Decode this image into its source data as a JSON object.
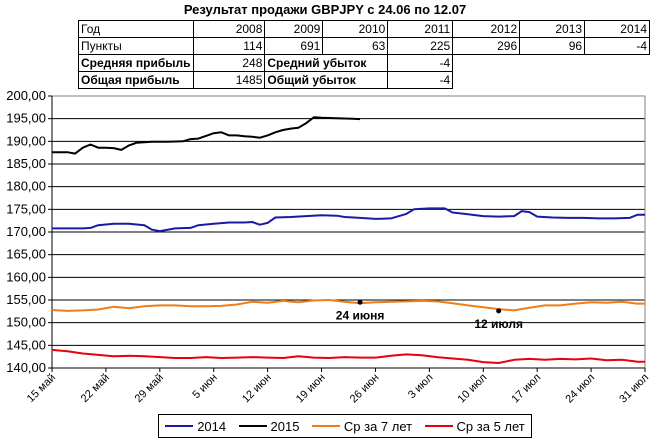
{
  "title": "Результат продажи GBPJPY с 24.06 по 12.07",
  "table": {
    "year_label": "Год",
    "years": [
      "2008",
      "2009",
      "2010",
      "2011",
      "2012",
      "2013",
      "2014"
    ],
    "points_label": "Пункты",
    "points": [
      "114",
      "691",
      "63",
      "225",
      "296",
      "96",
      "-4"
    ],
    "avg_profit_label": "Средняя прибыль",
    "avg_profit": "248",
    "avg_loss_label": "Средний убыток",
    "avg_loss": "-4",
    "total_profit_label": "Общая прибыль",
    "total_profit": "1485",
    "total_loss_label": "Общий убыток",
    "total_loss": "-4"
  },
  "chart_data": {
    "type": "line",
    "ylim": [
      140,
      200
    ],
    "yticks": [
      "140,00",
      "145,00",
      "150,00",
      "155,00",
      "160,00",
      "165,00",
      "170,00",
      "175,00",
      "180,00",
      "185,00",
      "190,00",
      "195,00",
      "200,00"
    ],
    "xlim": [
      0,
      77
    ],
    "xticks": [
      {
        "label": "15 май",
        "x": 0
      },
      {
        "label": "22 май",
        "x": 7
      },
      {
        "label": "29 май",
        "x": 14
      },
      {
        "label": "5 июн",
        "x": 21
      },
      {
        "label": "12 июн",
        "x": 28
      },
      {
        "label": "19 июн",
        "x": 35
      },
      {
        "label": "26 июн",
        "x": 42
      },
      {
        "label": "3 июл",
        "x": 49
      },
      {
        "label": "10 июл",
        "x": 56
      },
      {
        "label": "17 июл",
        "x": 63
      },
      {
        "label": "24 июл",
        "x": 70
      },
      {
        "label": "31 июл",
        "x": 77
      }
    ],
    "grid": "horizontal",
    "legend_position": "bottom",
    "series": [
      {
        "name": "2014",
        "color": "#1a1aa6",
        "points": [
          [
            0,
            170.8
          ],
          [
            2,
            170.8
          ],
          [
            4,
            170.8
          ],
          [
            5,
            170.9
          ],
          [
            6,
            171.5
          ],
          [
            8,
            171.8
          ],
          [
            10,
            171.8
          ],
          [
            12,
            171.5
          ],
          [
            13,
            170.5
          ],
          [
            14,
            170.2
          ],
          [
            16,
            170.8
          ],
          [
            18,
            170.9
          ],
          [
            19,
            171.5
          ],
          [
            21,
            171.8
          ],
          [
            23,
            172.1
          ],
          [
            25,
            172.1
          ],
          [
            26,
            172.2
          ],
          [
            27,
            171.6
          ],
          [
            28,
            172.0
          ],
          [
            29,
            173.2
          ],
          [
            31,
            173.3
          ],
          [
            33,
            173.5
          ],
          [
            35,
            173.7
          ],
          [
            37,
            173.6
          ],
          [
            38,
            173.3
          ],
          [
            40,
            173.1
          ],
          [
            42,
            172.9
          ],
          [
            44,
            173.0
          ],
          [
            46,
            174.0
          ],
          [
            47,
            175.0
          ],
          [
            49,
            175.2
          ],
          [
            51,
            175.2
          ],
          [
            52,
            174.3
          ],
          [
            54,
            173.9
          ],
          [
            56,
            173.5
          ],
          [
            58,
            173.4
          ],
          [
            60,
            173.5
          ],
          [
            61,
            174.6
          ],
          [
            62,
            174.4
          ],
          [
            63,
            173.4
          ],
          [
            65,
            173.2
          ],
          [
            67,
            173.1
          ],
          [
            69,
            173.1
          ],
          [
            71,
            173.0
          ],
          [
            73,
            173.0
          ],
          [
            75,
            173.1
          ],
          [
            76,
            173.8
          ],
          [
            77,
            173.8
          ]
        ]
      },
      {
        "name": "2015",
        "color": "#000000",
        "points": [
          [
            0,
            187.6
          ],
          [
            2,
            187.6
          ],
          [
            3,
            187.3
          ],
          [
            4,
            188.6
          ],
          [
            5,
            189.3
          ],
          [
            6,
            188.6
          ],
          [
            7,
            188.6
          ],
          [
            8,
            188.5
          ],
          [
            9,
            188.1
          ],
          [
            10,
            189.1
          ],
          [
            11,
            189.7
          ],
          [
            13,
            189.9
          ],
          [
            15,
            189.9
          ],
          [
            17,
            190.0
          ],
          [
            18,
            190.5
          ],
          [
            19,
            190.6
          ],
          [
            20,
            191.2
          ],
          [
            21,
            191.8
          ],
          [
            22,
            192.0
          ],
          [
            23,
            191.3
          ],
          [
            24,
            191.3
          ],
          [
            25,
            191.1
          ],
          [
            26,
            191.0
          ],
          [
            27,
            190.8
          ],
          [
            28,
            191.3
          ],
          [
            29,
            192.0
          ],
          [
            30,
            192.5
          ],
          [
            31,
            192.8
          ],
          [
            32,
            193.0
          ],
          [
            33,
            194.0
          ],
          [
            34,
            195.3
          ],
          [
            35,
            195.2
          ],
          [
            37,
            195.1
          ],
          [
            39,
            195.0
          ],
          [
            40,
            194.9
          ]
        ]
      },
      {
        "name": "Ср за 7 лет",
        "color": "#f07d19",
        "points": [
          [
            0,
            152.8
          ],
          [
            2,
            152.6
          ],
          [
            4,
            152.7
          ],
          [
            6,
            152.9
          ],
          [
            8,
            153.5
          ],
          [
            10,
            153.2
          ],
          [
            12,
            153.6
          ],
          [
            14,
            153.8
          ],
          [
            16,
            153.8
          ],
          [
            18,
            153.6
          ],
          [
            20,
            153.6
          ],
          [
            22,
            153.7
          ],
          [
            24,
            154.0
          ],
          [
            26,
            154.6
          ],
          [
            28,
            154.4
          ],
          [
            30,
            154.8
          ],
          [
            32,
            154.5
          ],
          [
            34,
            154.9
          ],
          [
            36,
            155.0
          ],
          [
            38,
            154.6
          ],
          [
            40,
            154.3
          ],
          [
            42,
            154.5
          ],
          [
            44,
            154.6
          ],
          [
            46,
            154.7
          ],
          [
            48,
            154.8
          ],
          [
            50,
            154.7
          ],
          [
            52,
            154.3
          ],
          [
            54,
            153.8
          ],
          [
            56,
            153.4
          ],
          [
            58,
            153.0
          ],
          [
            60,
            152.7
          ],
          [
            62,
            153.3
          ],
          [
            64,
            153.8
          ],
          [
            66,
            153.8
          ],
          [
            68,
            154.2
          ],
          [
            70,
            154.5
          ],
          [
            72,
            154.4
          ],
          [
            74,
            154.6
          ],
          [
            76,
            154.2
          ],
          [
            77,
            154.2
          ]
        ]
      },
      {
        "name": "Ср за 5 лет",
        "color": "#e8000c",
        "points": [
          [
            0,
            144.0
          ],
          [
            2,
            143.7
          ],
          [
            4,
            143.2
          ],
          [
            6,
            142.9
          ],
          [
            8,
            142.6
          ],
          [
            10,
            142.7
          ],
          [
            12,
            142.6
          ],
          [
            14,
            142.4
          ],
          [
            16,
            142.2
          ],
          [
            18,
            142.2
          ],
          [
            20,
            142.4
          ],
          [
            22,
            142.2
          ],
          [
            24,
            142.3
          ],
          [
            26,
            142.4
          ],
          [
            28,
            142.3
          ],
          [
            30,
            142.2
          ],
          [
            32,
            142.6
          ],
          [
            34,
            142.3
          ],
          [
            36,
            142.2
          ],
          [
            38,
            142.4
          ],
          [
            40,
            142.3
          ],
          [
            42,
            142.3
          ],
          [
            44,
            142.7
          ],
          [
            46,
            143.0
          ],
          [
            48,
            142.8
          ],
          [
            50,
            142.4
          ],
          [
            52,
            142.1
          ],
          [
            54,
            141.8
          ],
          [
            56,
            141.3
          ],
          [
            58,
            141.1
          ],
          [
            60,
            141.8
          ],
          [
            62,
            142.0
          ],
          [
            64,
            141.8
          ],
          [
            66,
            142.0
          ],
          [
            68,
            141.9
          ],
          [
            70,
            142.1
          ],
          [
            72,
            141.7
          ],
          [
            74,
            141.8
          ],
          [
            76,
            141.4
          ],
          [
            77,
            141.4
          ]
        ]
      }
    ],
    "annotations": [
      {
        "text": "24 июня",
        "x": 40,
        "y": 154.5
      },
      {
        "text": "12 июля",
        "x": 58,
        "y": 152.6
      }
    ]
  }
}
